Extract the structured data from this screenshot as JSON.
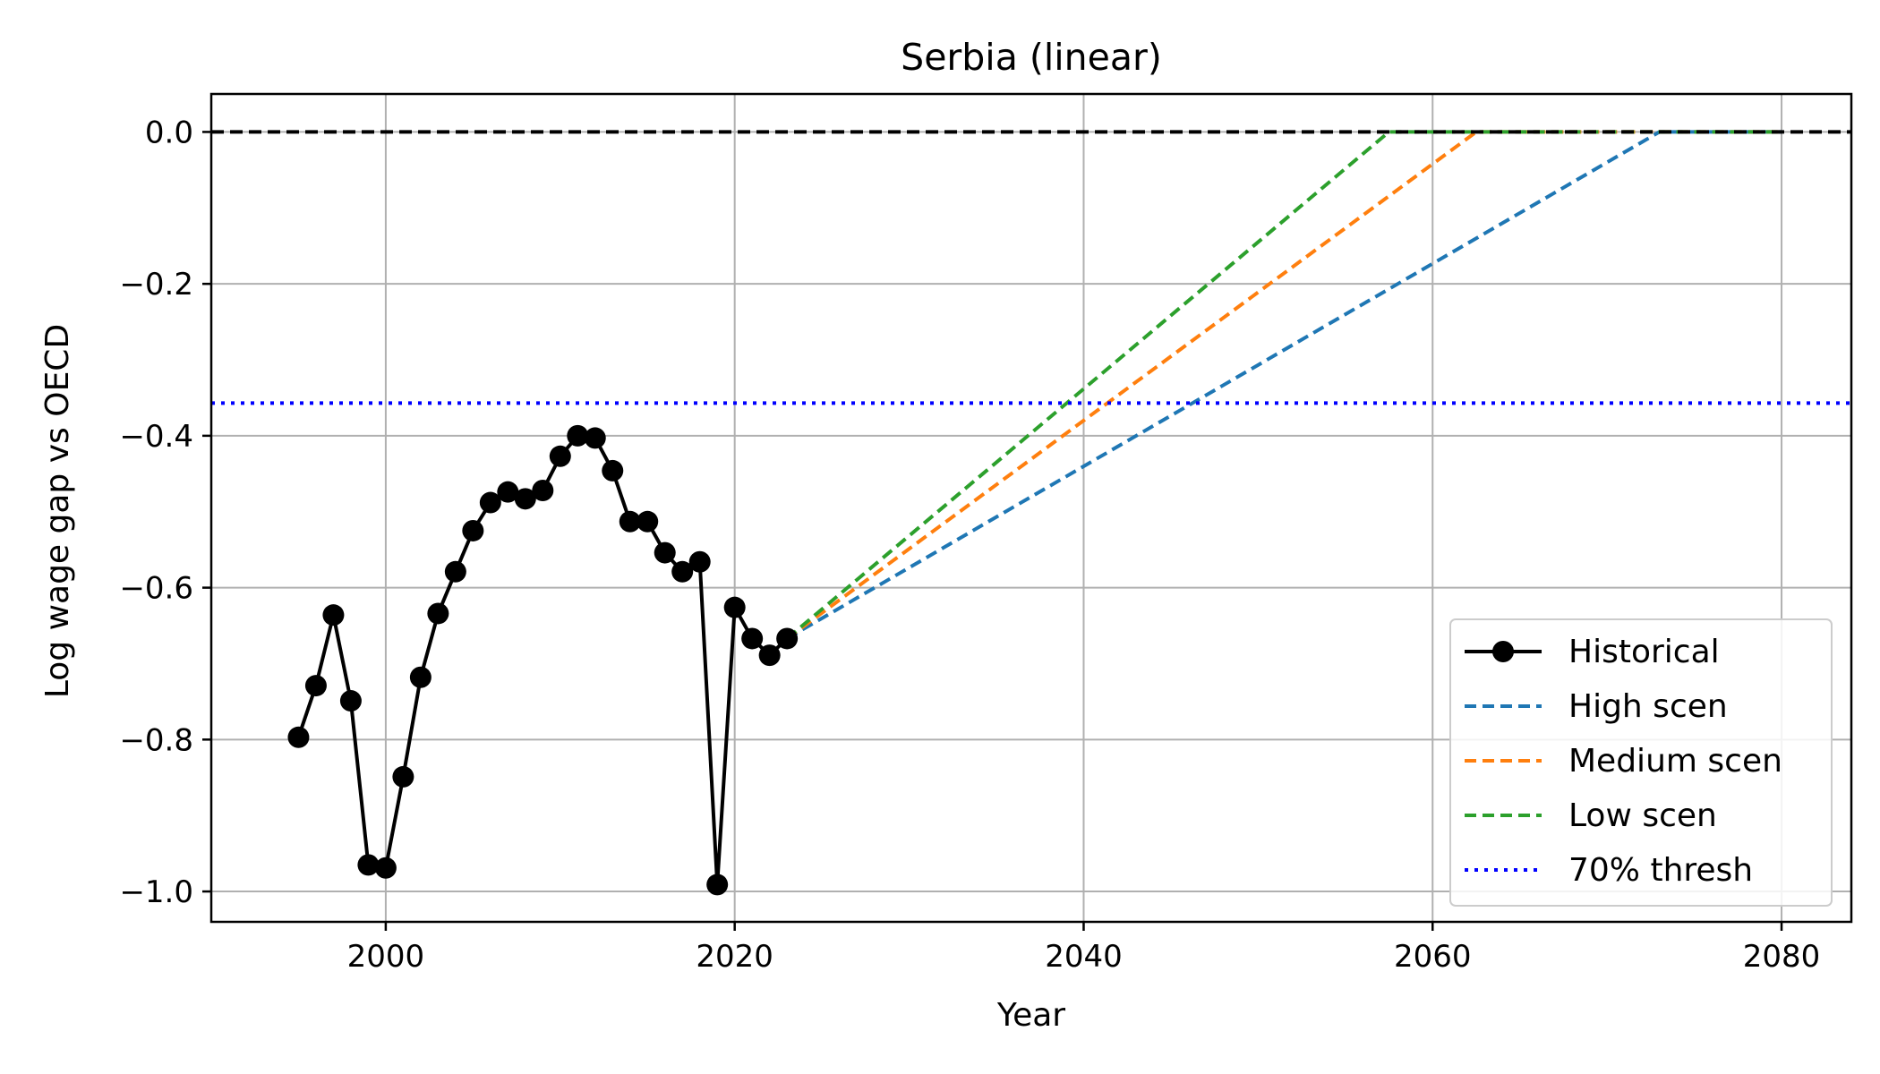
{
  "chart_data": {
    "type": "line",
    "title": "Serbia (linear)",
    "xlabel": "Year",
    "ylabel": "Log wage gap vs OECD",
    "xlim": [
      1990,
      2084
    ],
    "ylim": [
      -1.04,
      0.05
    ],
    "xticks": [
      2000,
      2020,
      2040,
      2060,
      2080
    ],
    "yticks": [
      0.0,
      -0.2,
      -0.4,
      -0.6,
      -0.8,
      -1.0
    ],
    "xtick_labels": [
      "2000",
      "2020",
      "2040",
      "2060",
      "2080"
    ],
    "ytick_labels": [
      "0.0",
      "−0.2",
      "−0.4",
      "−0.6",
      "−0.8",
      "−1.0"
    ],
    "grid": true,
    "legend_position": "lower-right",
    "series": [
      {
        "name": "Historical",
        "style": "solid-marker",
        "color": "#000000",
        "x": [
          1995,
          1996,
          1997,
          1998,
          1999,
          2000,
          2001,
          2002,
          2003,
          2004,
          2005,
          2006,
          2007,
          2008,
          2009,
          2010,
          2011,
          2012,
          2013,
          2014,
          2015,
          2016,
          2017,
          2018,
          2019,
          2020,
          2021,
          2022,
          2023
        ],
        "y": [
          -0.797,
          -0.729,
          -0.636,
          -0.749,
          -0.965,
          -0.969,
          -0.849,
          -0.718,
          -0.634,
          -0.579,
          -0.525,
          -0.488,
          -0.474,
          -0.483,
          -0.472,
          -0.427,
          -0.4,
          -0.403,
          -0.446,
          -0.513,
          -0.513,
          -0.554,
          -0.579,
          -0.566,
          -0.991,
          -0.626,
          -0.667,
          -0.689,
          -0.667
        ]
      },
      {
        "name": "High scen",
        "style": "dashed",
        "color": "#1f77b4",
        "x": [
          2023,
          2073,
          2080
        ],
        "y": [
          -0.667,
          0.0,
          0.0
        ]
      },
      {
        "name": "Medium scen",
        "style": "dashed",
        "color": "#ff7f0e",
        "x": [
          2023,
          2062.5,
          2080
        ],
        "y": [
          -0.667,
          0.0,
          0.0
        ]
      },
      {
        "name": "Low scen",
        "style": "dashed",
        "color": "#2ca02c",
        "x": [
          2023,
          2057.5,
          2080
        ],
        "y": [
          -0.667,
          0.0,
          0.0
        ]
      },
      {
        "name": "70% thresh",
        "style": "dotted",
        "color": "#0000ff",
        "y_const": -0.357
      }
    ],
    "reference_line": {
      "y": 0.0,
      "style": "dashed",
      "color": "#000000"
    }
  }
}
